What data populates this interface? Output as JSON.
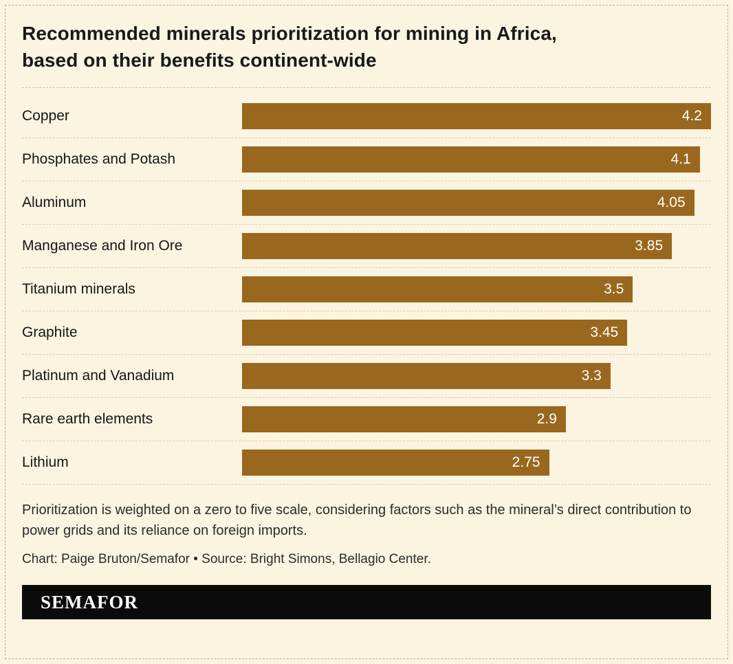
{
  "page": {
    "background_color": "#faf4e0",
    "bar_color": "#9a671f",
    "footer_color": "#0b0b0b"
  },
  "chart_data": {
    "type": "bar",
    "orientation": "horizontal",
    "title": "Recommended minerals prioritization for mining in Africa, based on their benefits continent-wide",
    "title_lines": [
      "Recommended minerals prioritization for mining in Africa,",
      "based on their benefits continent-wide"
    ],
    "categories": [
      "Copper",
      "Phosphates and Potash",
      "Aluminum",
      "Manganese and Iron Ore",
      "Titanium minerals",
      "Graphite",
      "Platinum and Vanadium",
      "Rare earth elements",
      "Lithium"
    ],
    "values": [
      4.2,
      4.1,
      4.05,
      3.85,
      3.5,
      3.45,
      3.3,
      2.9,
      2.75
    ],
    "value_labels": [
      "4.2",
      "4.1",
      "4.05",
      "3.85",
      "3.5",
      "3.45",
      "3.3",
      "2.9",
      "2.75"
    ],
    "xlim": [
      0,
      4.2
    ],
    "bar_color": "#9a671f",
    "value_label_position": "inside-right",
    "grid": "dashed-row-separators",
    "legend": "none"
  },
  "note": {
    "text": "Prioritization is weighted on a zero to five scale, considering factors such as the mineral’s direct contribution to power grids and its reliance on foreign imports.",
    "credit": "Chart: Paige Bruton/Semafor • Source: Bright Simons, Bellagio Center."
  },
  "footer": {
    "brand": "SEMAFOR"
  }
}
